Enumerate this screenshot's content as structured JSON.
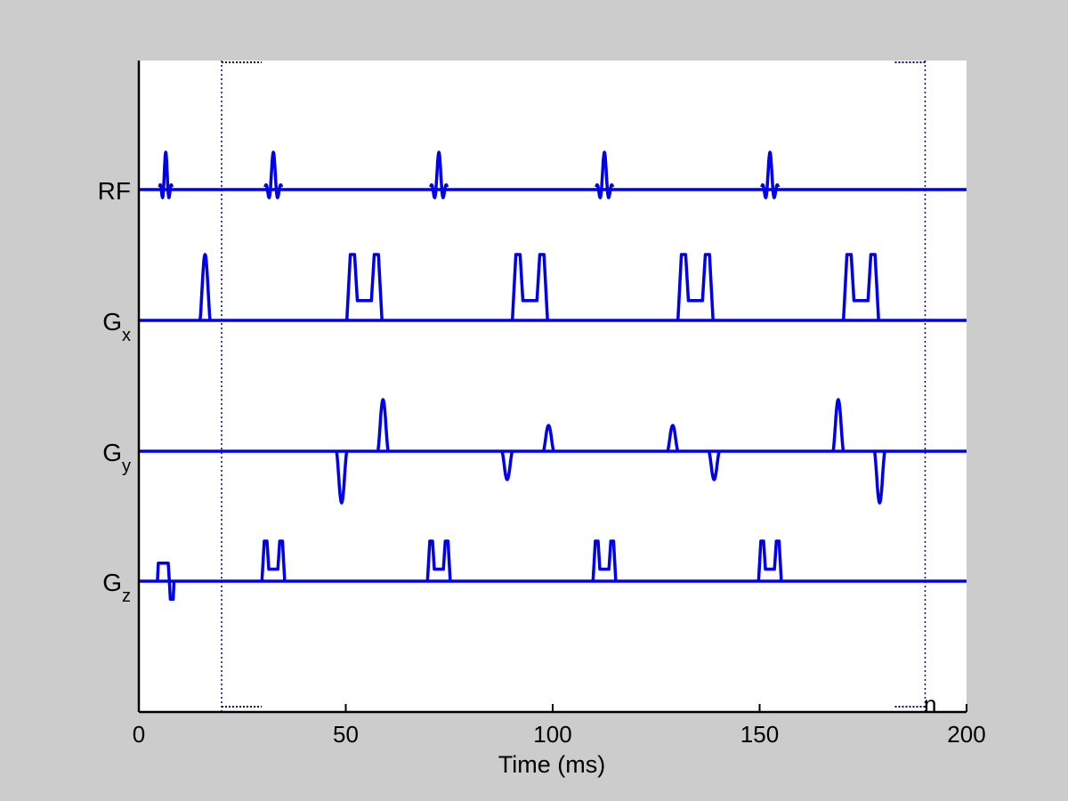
{
  "chart_data": {
    "type": "line",
    "xlabel": "Time (ms)",
    "xlim": [
      0,
      200
    ],
    "x_ticks": [
      "0",
      "50",
      "100",
      "150",
      "200"
    ],
    "grid": false,
    "series_color": "#0000ee",
    "marker_color": "#0000aa",
    "window_markers_ms": [
      20,
      190
    ],
    "corner_text": "n",
    "rows": [
      {
        "name": "RF",
        "sub": "",
        "pulses": [
          {
            "t": 6.5,
            "amp": 1.0,
            "shape": "sinc",
            "width": 3
          },
          {
            "t": 32.5,
            "amp": 1.0,
            "shape": "sinc",
            "width": 4
          },
          {
            "t": 72.5,
            "amp": 1.0,
            "shape": "sinc",
            "width": 4
          },
          {
            "t": 112.5,
            "amp": 1.0,
            "shape": "sinc",
            "width": 4
          },
          {
            "t": 152.5,
            "amp": 1.0,
            "shape": "sinc",
            "width": 4
          }
        ]
      },
      {
        "name": "G",
        "sub": "x",
        "pulses": [
          {
            "t": 16,
            "amp": 1.0,
            "shape": "peak",
            "width": 2.5
          },
          {
            "t": 54.5,
            "amp": 1.0,
            "shape": "double",
            "width": 8.5
          },
          {
            "t": 94.5,
            "amp": 1.0,
            "shape": "double",
            "width": 8.5
          },
          {
            "t": 134.5,
            "amp": 1.0,
            "shape": "double",
            "width": 8.5
          },
          {
            "t": 174.5,
            "amp": 1.0,
            "shape": "double",
            "width": 8.5
          }
        ]
      },
      {
        "name": "G",
        "sub": "y",
        "pulses": [
          {
            "t": 49,
            "amp": -1.0,
            "shape": "peak",
            "width": 2.5
          },
          {
            "t": 59,
            "amp": 1.0,
            "shape": "peak",
            "width": 2.5
          },
          {
            "t": 89,
            "amp": -0.55,
            "shape": "peak",
            "width": 2.5
          },
          {
            "t": 99,
            "amp": 0.5,
            "shape": "peak",
            "width": 2.5
          },
          {
            "t": 129,
            "amp": 0.5,
            "shape": "peak",
            "width": 2.5
          },
          {
            "t": 139,
            "amp": -0.55,
            "shape": "peak",
            "width": 2.5
          },
          {
            "t": 169,
            "amp": 1.0,
            "shape": "peak",
            "width": 2.5
          },
          {
            "t": 179,
            "amp": -1.0,
            "shape": "peak",
            "width": 2.5
          }
        ]
      },
      {
        "name": "G",
        "sub": "z",
        "pulses": [
          {
            "t": 6.5,
            "amp": 0.45,
            "shape": "refocus",
            "width": 4
          },
          {
            "t": 32.5,
            "amp": 1.0,
            "shape": "double",
            "width": 5.5
          },
          {
            "t": 72.5,
            "amp": 1.0,
            "shape": "double",
            "width": 5.5
          },
          {
            "t": 112.5,
            "amp": 1.0,
            "shape": "double",
            "width": 5.5
          },
          {
            "t": 152.5,
            "amp": 1.0,
            "shape": "double",
            "width": 5.5
          }
        ]
      }
    ]
  }
}
